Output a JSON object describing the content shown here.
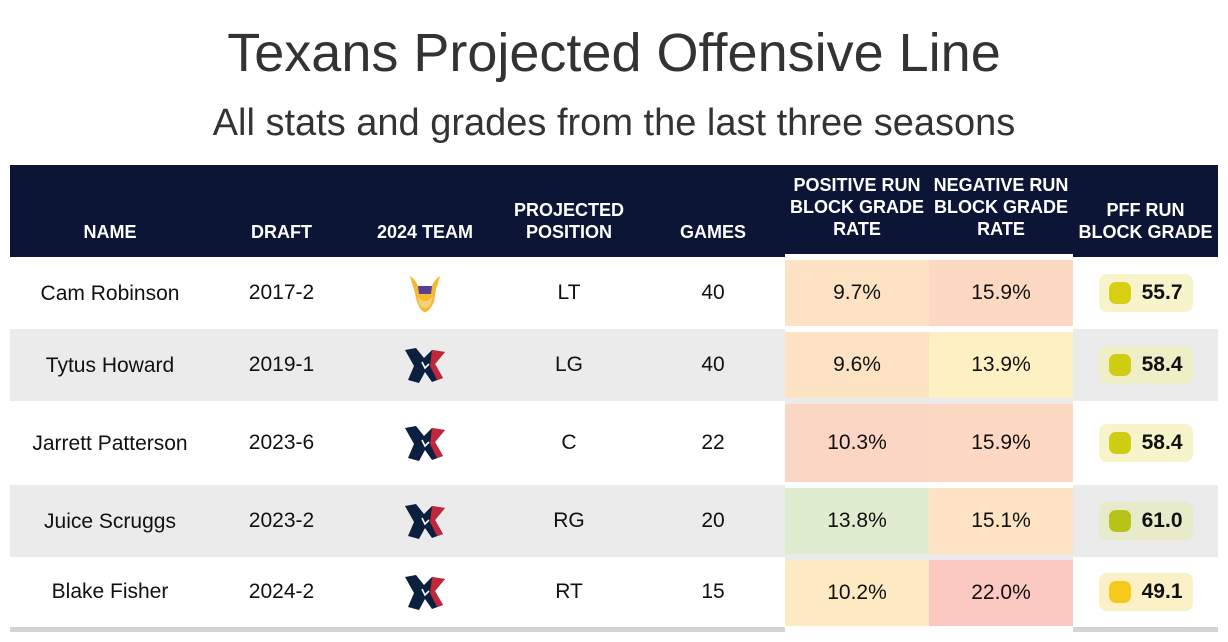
{
  "title": "Texans Projected Offensive Line",
  "subtitle": "All stats and grades from the last three seasons",
  "headers": {
    "name": "NAME",
    "draft": "DRAFT",
    "team": "2024 TEAM",
    "position": "PROJECTED POSITION",
    "games": "GAMES",
    "positive": "POSITIVE RUN BLOCK GRADE RATE",
    "negative": "NEGATIVE RUN BLOCK GRADE RATE",
    "grade": "PFF RUN BLOCK GRADE"
  },
  "rows": [
    {
      "name": "Cam Robinson",
      "draft": "2017-2",
      "team_icon": "vikings-logo-icon",
      "position": "LT",
      "games": "40",
      "positive": "9.7%",
      "negative": "15.9%",
      "grade": "55.7",
      "positive_color": "#fde3c3",
      "negative_color": "#fdd9c3",
      "grade_bg": "#f7f4cc",
      "grade_dot": "#d8cf12"
    },
    {
      "name": "Tytus Howard",
      "draft": "2019-1",
      "team_icon": "texans-logo-icon",
      "position": "LG",
      "games": "40",
      "positive": "9.6%",
      "negative": "13.9%",
      "grade": "58.4",
      "positive_color": "#fde3c3",
      "negative_color": "#fdf0c3",
      "grade_bg": "#eeeec7",
      "grade_dot": "#cfcd14"
    },
    {
      "name": "Jarrett Patterson",
      "draft": "2023-6",
      "team_icon": "texans-logo-icon",
      "position": "C",
      "games": "22",
      "positive": "10.3%",
      "negative": "15.9%",
      "grade": "58.4",
      "positive_color": "#fcd6c4",
      "negative_color": "#fdd9c3",
      "grade_bg": "#f7f4cc",
      "grade_dot": "#cfcd14"
    },
    {
      "name": "Juice Scruggs",
      "draft": "2023-2",
      "team_icon": "texans-logo-icon",
      "position": "RG",
      "games": "20",
      "positive": "13.8%",
      "negative": "15.1%",
      "grade": "61.0",
      "positive_color": "#dfeccf",
      "negative_color": "#fde3c3",
      "grade_bg": "#e8ebc9",
      "grade_dot": "#b9c219"
    },
    {
      "name": "Blake Fisher",
      "draft": "2024-2",
      "team_icon": "texans-logo-icon",
      "position": "RT",
      "games": "15",
      "positive": "10.2%",
      "negative": "22.0%",
      "grade": "49.1",
      "positive_color": "#fdeac3",
      "negative_color": "#fbc9c1",
      "grade_bg": "#fbf1c7",
      "grade_dot": "#f7c91a"
    }
  ],
  "colors": {
    "header_bg": "#0c1535",
    "texans_navy": "#0b1f3f",
    "texans_red": "#c0273a",
    "vikings_purple": "#5a3e94",
    "vikings_gold": "#f5b82e"
  }
}
